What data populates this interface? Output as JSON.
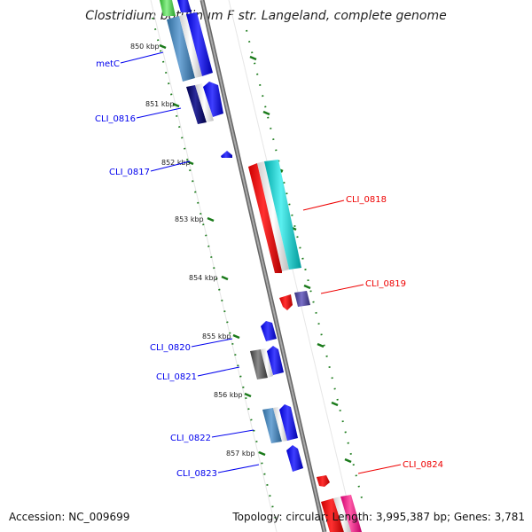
{
  "title": "Clostridium botulinum F str. Langeland, complete genome",
  "accession": "Accession: NC_009699",
  "summary": "Topology: circular; Length: 3,995,387 bp; Genes: 3,781",
  "colors": {
    "backbone": "#888888",
    "tick": "#1a7a1a",
    "blue": "#0000ee",
    "red": "#ee0000",
    "cyan": "#00c8c8",
    "steel": "#4682b4",
    "gray": "#555555",
    "navy": "#000066",
    "slate": "#483d8b",
    "pink": "#ff1493",
    "green": "#4cd64c"
  },
  "ticks": [
    "850 kbp",
    "851 kbp",
    "852 kbp",
    "853 kbp",
    "854 kbp",
    "855 kbp",
    "856 kbp",
    "857 kbp"
  ],
  "features": [
    {
      "label": "metC",
      "side": "left",
      "color": "blue"
    },
    {
      "label": "CLI_0816",
      "side": "left",
      "color": "blue"
    },
    {
      "label": "CLI_0817",
      "side": "left",
      "color": "blue"
    },
    {
      "label": "CLI_0818",
      "side": "right",
      "color": "red"
    },
    {
      "label": "CLI_0819",
      "side": "right",
      "color": "red"
    },
    {
      "label": "CLI_0820",
      "side": "left",
      "color": "blue"
    },
    {
      "label": "CLI_0821",
      "side": "left",
      "color": "blue"
    },
    {
      "label": "CLI_0822",
      "side": "left",
      "color": "blue"
    },
    {
      "label": "CLI_0823",
      "side": "left",
      "color": "blue"
    },
    {
      "label": "CLI_0824",
      "side": "right",
      "color": "red"
    }
  ]
}
